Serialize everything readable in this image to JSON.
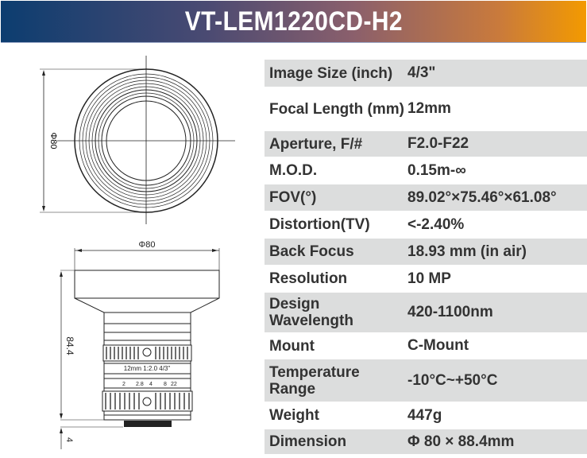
{
  "title": "VT-LEM1220CD-H2",
  "drawing": {
    "front_diameter_label": "Φ80",
    "side_diameter_label": "Φ80",
    "length_label": "84.4",
    "mount_label": "4",
    "lens_marking": "12mm 1:2.0 4/3\"",
    "aperture_scale": [
      "2",
      "2.8",
      "4",
      "8",
      "22"
    ]
  },
  "specs": [
    {
      "label": "Image Size (inch)",
      "value": "4/3\"",
      "shaded": true
    },
    {
      "label": "Focal Length (mm)",
      "value": "12mm",
      "shaded": false
    },
    {
      "label": "Aperture, F/#",
      "value": "F2.0-F22",
      "shaded": true
    },
    {
      "label": "M.O.D.",
      "value": "0.15m-∞",
      "shaded": false
    },
    {
      "label": "FOV(°)",
      "value": "89.02°×75.46°×61.08°",
      "shaded": true
    },
    {
      "label": "Distortion(TV)",
      "value": "<-2.40%",
      "shaded": false
    },
    {
      "label": "Back Focus",
      "value": "18.93 mm (in air)",
      "shaded": true
    },
    {
      "label": "Resolution",
      "value": "10 MP",
      "shaded": false
    },
    {
      "label": "Design Wavelength",
      "value": "420-1100nm",
      "shaded": true
    },
    {
      "label": "Mount",
      "value": "C-Mount",
      "shaded": false
    },
    {
      "label": "Temperature Range",
      "value": "-10°C~+50°C",
      "shaded": true
    },
    {
      "label": "Weight",
      "value": "447g",
      "shaded": false
    },
    {
      "label": "Dimension",
      "value": "Φ 80 × 88.4mm",
      "shaded": true
    }
  ]
}
